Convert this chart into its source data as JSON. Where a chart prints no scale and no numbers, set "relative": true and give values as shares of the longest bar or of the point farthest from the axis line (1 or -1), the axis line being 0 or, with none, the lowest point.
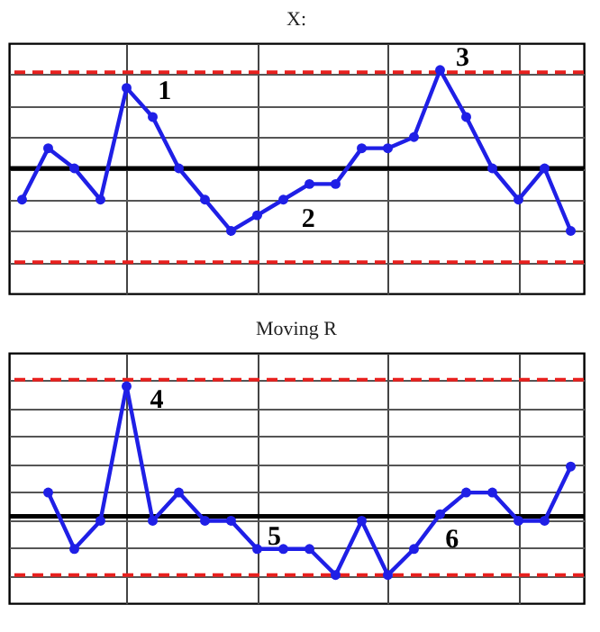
{
  "chart_data": [
    {
      "type": "line",
      "title": "X:",
      "relative": true,
      "tick_labels": false,
      "grid": true,
      "marker": "circle",
      "line_style": "solid",
      "legend": false,
      "categories": [
        null,
        null,
        null,
        null,
        null,
        null,
        null,
        null,
        null,
        null,
        null,
        null,
        null,
        null,
        null,
        null,
        null,
        null,
        null,
        null,
        null,
        null
      ],
      "series": [
        {
          "color": "#1f1fe6",
          "values": [
            0.42,
            0.65,
            0.56,
            0.42,
            0.92,
            0.79,
            0.56,
            0.42,
            0.28,
            0.35,
            0.42,
            0.49,
            0.49,
            0.65,
            0.65,
            0.7,
            1,
            0.79,
            0.56,
            0.42,
            0.56,
            0.28
          ]
        }
      ],
      "ref_lines": [
        {
          "axis": "y",
          "value": 0.99,
          "color": "#e8201e",
          "line_style": "dashed"
        },
        {
          "axis": "y",
          "value": 0.56,
          "color": "#000000",
          "line_style": "solid"
        },
        {
          "axis": "y",
          "value": 0.14,
          "color": "#e8201e",
          "line_style": "dashed"
        }
      ],
      "annotations": [
        "1",
        "2",
        "3"
      ]
    },
    {
      "type": "line",
      "title": "Moving R",
      "relative": true,
      "tick_labels": false,
      "grid": true,
      "marker": "circle",
      "line_style": "solid",
      "legend": false,
      "categories": [
        null,
        null,
        null,
        null,
        null,
        null,
        null,
        null,
        null,
        null,
        null,
        null,
        null,
        null,
        null,
        null,
        null,
        null,
        null,
        null,
        null,
        null
      ],
      "series": [
        {
          "color": "#1f1fe6",
          "values": [
            null,
            0.51,
            0.25,
            0.38,
            1,
            0.38,
            0.51,
            0.38,
            0.38,
            0.25,
            0.25,
            0.25,
            0.13,
            0.38,
            0.13,
            0.25,
            0.41,
            0.51,
            0.51,
            0.38,
            0.38,
            0.63
          ]
        }
      ],
      "ref_lines": [
        {
          "axis": "y",
          "value": 1.03,
          "color": "#e8201e",
          "line_style": "dashed"
        },
        {
          "axis": "y",
          "value": 0.4,
          "color": "#000000",
          "line_style": "solid"
        },
        {
          "axis": "y",
          "value": 0.13,
          "color": "#e8201e",
          "line_style": "dashed"
        }
      ],
      "annotations": [
        "4",
        "5",
        "6"
      ]
    }
  ]
}
